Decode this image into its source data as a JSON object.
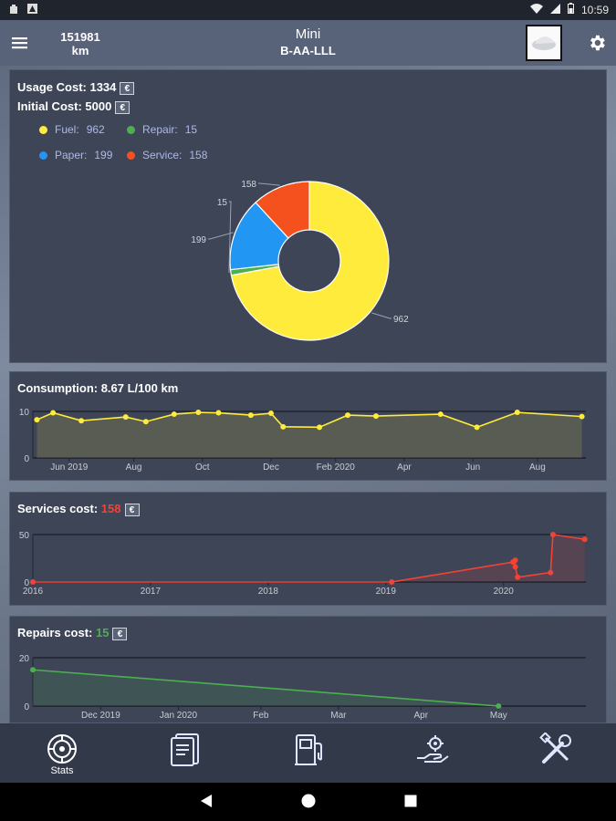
{
  "status_bar": {
    "time": "10:59"
  },
  "app_bar": {
    "odometer_value": "151981",
    "odometer_unit": "km",
    "car_name": "Mini",
    "plate": "B-AA-LLL"
  },
  "usage_card": {
    "usage_label": "Usage Cost: 1334",
    "initial_label": "Initial Cost: 5000",
    "currency_symbol": "€",
    "legend": [
      {
        "name": "Fuel:",
        "value": "962",
        "color": "#ffeb3b"
      },
      {
        "name": "Repair:",
        "value": "15",
        "color": "#4caf50"
      },
      {
        "name": "Paper:",
        "value": "199",
        "color": "#2196f3"
      },
      {
        "name": "Service:",
        "value": "158",
        "color": "#f4511e"
      }
    ]
  },
  "consumption_card": {
    "title": "Consumption: 8.67 L/100 km"
  },
  "services_card": {
    "title_prefix": "Services cost:",
    "title_value": "158",
    "value_color": "#f44336"
  },
  "repairs_card": {
    "title_prefix": "Repairs cost:",
    "title_value": "15",
    "value_color": "#4caf50"
  },
  "chart_data": [
    {
      "type": "pie",
      "title": "Usage Cost",
      "categories": [
        "Fuel",
        "Repair",
        "Paper",
        "Service"
      ],
      "values": [
        962,
        15,
        199,
        158
      ],
      "colors": [
        "#ffeb3b",
        "#4caf50",
        "#2196f3",
        "#f4511e"
      ],
      "labels": [
        "962",
        "15",
        "199",
        "158"
      ]
    },
    {
      "type": "area",
      "title": "Consumption",
      "ylim": [
        0,
        10
      ],
      "yticks": [
        0,
        10
      ],
      "xlim": [
        2019.33,
        2020.7
      ],
      "xticks": [
        {
          "x": 2019.42,
          "label": "Jun 2019"
        },
        {
          "x": 2019.58,
          "label": "Aug"
        },
        {
          "x": 2019.75,
          "label": "Oct"
        },
        {
          "x": 2019.92,
          "label": "Dec"
        },
        {
          "x": 2020.08,
          "label": "Feb 2020"
        },
        {
          "x": 2020.25,
          "label": "Apr"
        },
        {
          "x": 2020.42,
          "label": "Jun"
        },
        {
          "x": 2020.58,
          "label": "Aug"
        }
      ],
      "x": [
        2019.34,
        2019.38,
        2019.45,
        2019.56,
        2019.61,
        2019.68,
        2019.74,
        2019.79,
        2019.87,
        2019.92,
        2019.95,
        2020.04,
        2020.11,
        2020.18,
        2020.34,
        2020.43,
        2020.53,
        2020.69
      ],
      "y": [
        8.2,
        9.7,
        8.0,
        8.8,
        7.8,
        9.4,
        9.8,
        9.7,
        9.2,
        9.6,
        6.7,
        6.6,
        9.2,
        9.0,
        9.4,
        6.6,
        9.8,
        8.9
      ],
      "color": "#ffeb3b"
    },
    {
      "type": "area",
      "title": "Services cost",
      "ylim": [
        0,
        50
      ],
      "yticks": [
        0,
        50
      ],
      "xlim": [
        2016,
        2020.7
      ],
      "xticks": [
        {
          "x": 2016,
          "label": "2016"
        },
        {
          "x": 2017,
          "label": "2017"
        },
        {
          "x": 2018,
          "label": "2018"
        },
        {
          "x": 2019,
          "label": "2019"
        },
        {
          "x": 2020,
          "label": "2020"
        }
      ],
      "x": [
        2016.0,
        2019.05,
        2020.08,
        2020.1,
        2020.1,
        2020.12,
        2020.4,
        2020.42,
        2020.69
      ],
      "y": [
        0,
        0,
        21,
        23,
        16,
        5,
        10,
        50,
        45
      ],
      "color": "#f44336"
    },
    {
      "type": "area",
      "title": "Repairs cost",
      "ylim": [
        0,
        20
      ],
      "yticks": [
        0,
        20
      ],
      "xlim": [
        2019.85,
        2020.42
      ],
      "xticks": [
        {
          "x": 2019.92,
          "label": "Dec 2019"
        },
        {
          "x": 2020.0,
          "label": "Jan 2020"
        },
        {
          "x": 2020.085,
          "label": "Feb"
        },
        {
          "x": 2020.165,
          "label": "Mar"
        },
        {
          "x": 2020.25,
          "label": "Apr"
        },
        {
          "x": 2020.33,
          "label": "May"
        }
      ],
      "x": [
        2019.85,
        2020.33
      ],
      "y": [
        15,
        0
      ],
      "color": "#4caf50"
    }
  ],
  "bottom_nav": [
    {
      "icon": "tire-icon",
      "label": "Stats"
    },
    {
      "icon": "document-icon",
      "label": ""
    },
    {
      "icon": "fuel-pump-icon",
      "label": ""
    },
    {
      "icon": "hand-gear-icon",
      "label": ""
    },
    {
      "icon": "tools-icon",
      "label": ""
    }
  ]
}
